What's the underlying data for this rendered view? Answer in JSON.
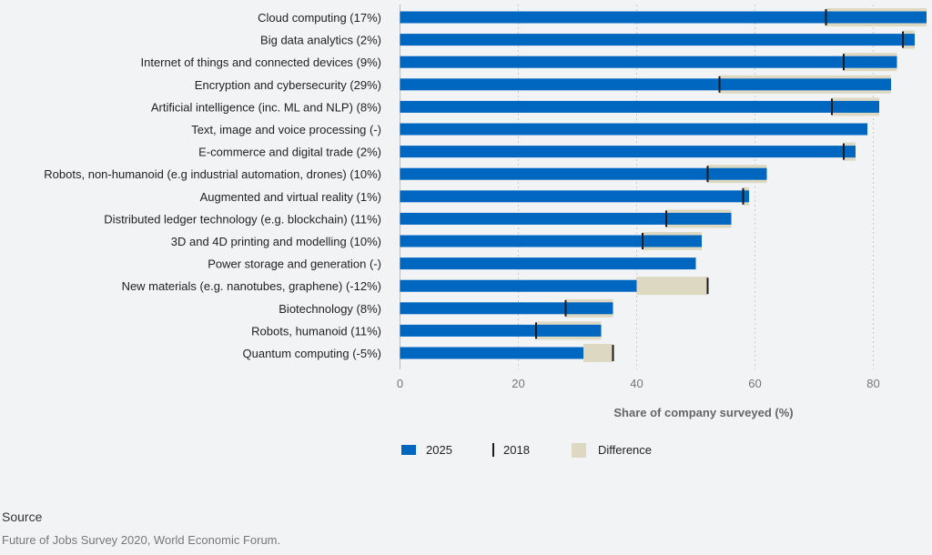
{
  "chart_data": {
    "type": "bar",
    "orientation": "horizontal",
    "categories": [
      "Cloud computing (17%)",
      "Big data analytics (2%)",
      "Internet of things and connected devices (9%)",
      "Encryption and cybersecurity (29%)",
      "Artificial intelligence (inc. ML and NLP) (8%)",
      "Text, image and voice processing (-)",
      "E-commerce and digital trade (2%)",
      "Robots, non-humanoid (e.g industrial automation, drones) (10%)",
      "Augmented and virtual reality (1%)",
      "Distributed ledger technology (e.g. blockchain) (11%)",
      "3D and 4D printing and modelling (10%)",
      "Power storage and generation (-)",
      "New materials (e.g. nanotubes, graphene) (-12%)",
      "Biotechnology (8%)",
      "Robots, humanoid (11%)",
      "Quantum computing (-5%)"
    ],
    "series": [
      {
        "name": "2025",
        "values": [
          89,
          87,
          84,
          83,
          81,
          79,
          77,
          62,
          59,
          56,
          51,
          50,
          40,
          36,
          34,
          31
        ]
      },
      {
        "name": "2018",
        "values": [
          72,
          85,
          75,
          54,
          73,
          null,
          75,
          52,
          58,
          45,
          41,
          null,
          52,
          28,
          23,
          36
        ]
      }
    ],
    "difference_label": "Difference",
    "xlabel": "Share of company surveyed (%)",
    "xticks": [
      "0",
      "20",
      "40",
      "60",
      "80"
    ],
    "xlim": [
      0,
      90
    ],
    "grid": true,
    "legend_placement": "bottom",
    "colors": {
      "bar_2025": "#0067c0",
      "marker_2018": "#1a1a1a",
      "difference": "#ddd8c2",
      "background": "#f2f3f5"
    }
  },
  "source": {
    "heading": "Source",
    "text": "Future of Jobs Survey 2020, World Economic Forum."
  }
}
